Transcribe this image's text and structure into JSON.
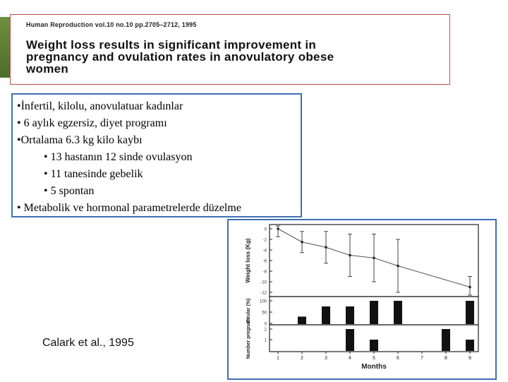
{
  "header": {
    "journal": "Human Reproduction vol.10 no.10 pp.2705–2712, 1995",
    "title_lines": [
      "Weight loss results in significant improvement in",
      "pregnancy and ovulation rates in anovulatory obese",
      "women"
    ]
  },
  "bullets": [
    {
      "text": "•İnfertil, kilolu, anovulatuar kadınlar",
      "level": 0
    },
    {
      "text": "• 6 aylık egzersiz, diyet programı",
      "level": 0
    },
    {
      "text": "•Ortalama 6.3 kg kilo kaybı",
      "level": 0
    },
    {
      "text": "• 13 hastanın 12 sinde ovulasyon",
      "level": 1
    },
    {
      "text": "• 11 tanesinde gebelik",
      "level": 1
    },
    {
      "text": "• 5 spontan",
      "level": 1
    },
    {
      "text": "• Metabolik ve hormonal parametrelerde düzelme",
      "level": 0
    }
  ],
  "citation": "Calark et al., 1995",
  "chart_data": [
    {
      "type": "line",
      "ylabel": "Weight loss (Kg)",
      "x": [
        1,
        2,
        3,
        4,
        5,
        6,
        9
      ],
      "values": [
        0,
        -2.5,
        -3.5,
        -5,
        -5.5,
        -7,
        -11
      ],
      "error": [
        1.5,
        2,
        3,
        4,
        4.5,
        5,
        2
      ],
      "ylim": [
        -12,
        0
      ],
      "yticks": [
        "0",
        "-2",
        "-4",
        "-6",
        "-8",
        "-10",
        "-12"
      ]
    },
    {
      "type": "bar",
      "ylabel": "Ovular (%)",
      "x": [
        2,
        3,
        4,
        5,
        6,
        9
      ],
      "values": [
        30,
        75,
        75,
        100,
        100,
        100
      ],
      "ylim": [
        0,
        100
      ],
      "yticks": [
        "100",
        "50",
        "0"
      ]
    },
    {
      "type": "bar",
      "ylabel": "Number pregnant",
      "x": [
        4,
        5,
        8,
        9
      ],
      "values": [
        2,
        1,
        2,
        1
      ],
      "ylim": [
        0,
        2
      ],
      "yticks": [
        "2",
        "1"
      ],
      "xlabel": "Months",
      "xticks": [
        "1",
        "2",
        "3",
        "4",
        "5",
        "6",
        "7",
        "8",
        "9"
      ]
    }
  ]
}
